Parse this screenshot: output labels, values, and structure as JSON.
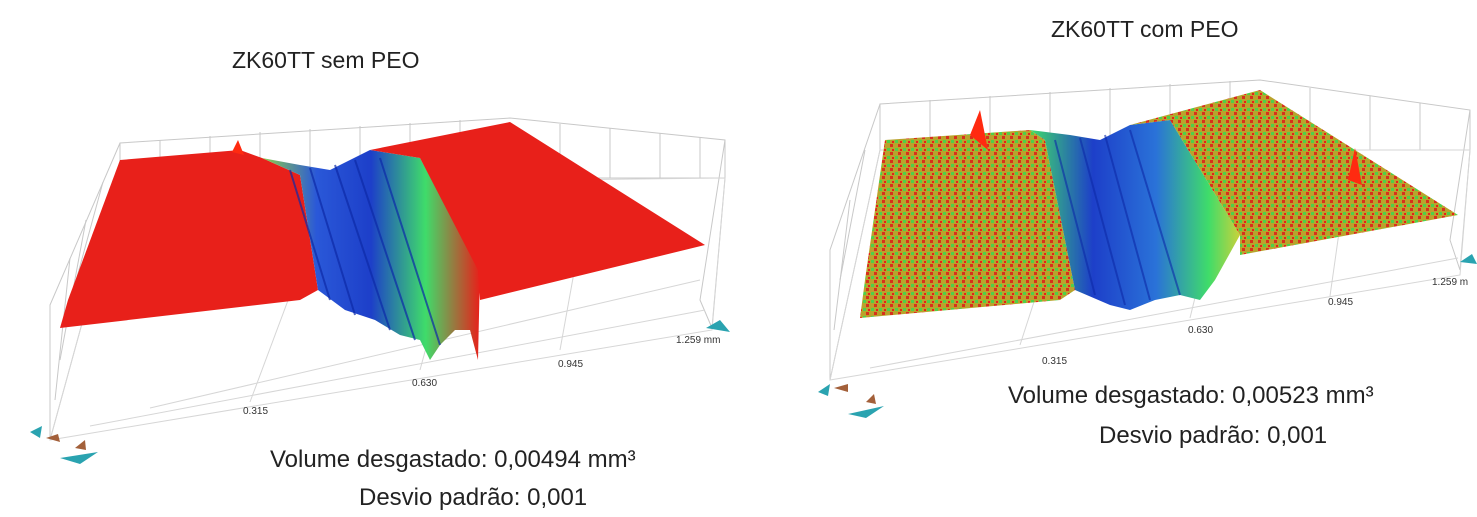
{
  "panels": [
    {
      "title": "ZK60TT sem PEO",
      "volume_text": "Volume desgastado: 0,00494  mm³",
      "sd_text": "Desvio padrão: 0,001",
      "axis_ticks": [
        "0.315",
        "0.630",
        "0.945",
        "1.259 mm"
      ]
    },
    {
      "title": "ZK60TT com PEO",
      "volume_text": "Volume desgastado: 0,00523  mm³",
      "sd_text": "Desvio padrão: 0,001",
      "axis_ticks": [
        "0.315",
        "0.630",
        "0.945",
        "1.259 m"
      ]
    }
  ],
  "colors": {
    "surface_high": "#e8201a",
    "surface_mid": "#c9d23a",
    "surface_green": "#3fdc6a",
    "surface_low": "#1d3fc9",
    "grid": "#c8c8c8"
  }
}
